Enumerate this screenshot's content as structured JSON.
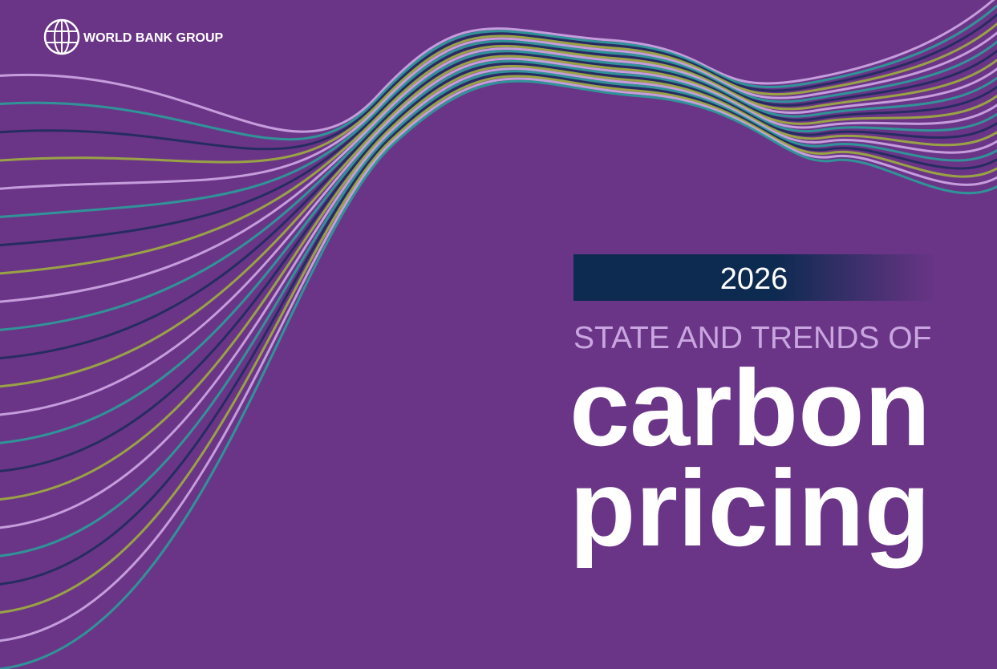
{
  "header": {
    "logo_text": "WORLD BANK GROUP"
  },
  "cover": {
    "year": "2026",
    "subtitle": "STATE AND TRENDS OF",
    "title_lines": [
      "carbon",
      "pricing"
    ]
  }
}
